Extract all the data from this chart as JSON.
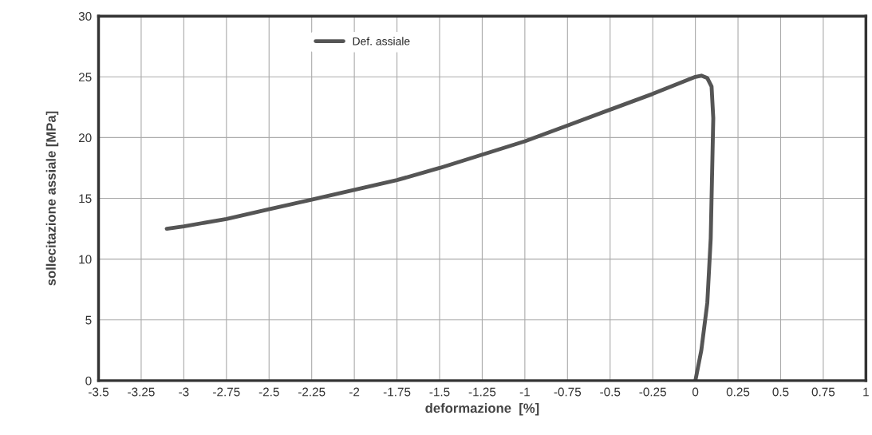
{
  "chart_data": {
    "type": "line",
    "xlabel": "deformazione  [%]",
    "ylabel": "sollecitazione assiale [MPa]",
    "series": [
      {
        "name": "Def. assiale",
        "color": "#555555",
        "x": [
          0,
          0.035,
          0.07,
          0.09,
          0.1,
          0.105,
          0.095,
          0.07,
          0.035,
          0,
          -0.25,
          -0.5,
          -0.75,
          -1,
          -1.25,
          -1.5,
          -1.75,
          -2,
          -2.25,
          -2.5,
          -2.75,
          -3,
          -3.1
        ],
        "values": [
          0,
          2.5,
          6.4,
          11.7,
          18.3,
          21.6,
          24.2,
          24.9,
          25.1,
          25.0,
          23.6,
          22.3,
          21.0,
          19.7,
          18.6,
          17.5,
          16.5,
          15.7,
          14.9,
          14.1,
          13.3,
          12.7,
          12.5
        ]
      }
    ],
    "xlim": [
      -3.5,
      1
    ],
    "xticks": [
      -3.5,
      -3.25,
      -3,
      -2.75,
      -2.5,
      -2.25,
      -2,
      -1.75,
      -1.5,
      -1.25,
      -1,
      -0.75,
      -0.5,
      -0.25,
      0,
      0.25,
      0.5,
      0.75,
      1
    ],
    "ylim": [
      0,
      30
    ],
    "yticks": [
      0,
      5,
      10,
      15,
      20,
      25,
      30
    ],
    "grid": true,
    "legend": "top left",
    "marker": "none",
    "line_style": "solid"
  }
}
